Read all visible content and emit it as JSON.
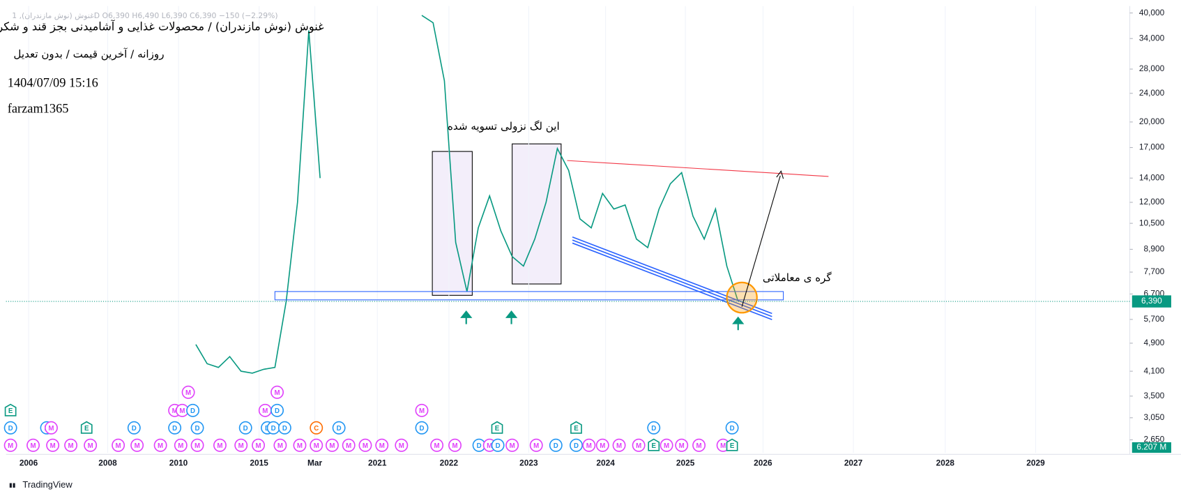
{
  "chart_data": {
    "type": "line",
    "legend_line": "غنوش (نوش مازندران), 1D  O6,390  H6,490  L6,390  C6,390  −150 (−2.29%)",
    "title": "غنوش (نوش مازندران) / محصولات غذایی و آشامیدنی بجز قند و شکر",
    "subtitle": "روزانه / آخرین قیمت / بدون تعدیل",
    "timestamp": "1404/07/09 15:16",
    "author": "farzam1365",
    "annotations": [
      "این لگ نزولی تسویه شده",
      "گره ی معاملاتی"
    ],
    "log_scale": true,
    "ylim": [
      2440,
      41800
    ],
    "yticks": [
      {
        "value": 40000,
        "label": "40,000"
      },
      {
        "value": 34000,
        "label": "34,000"
      },
      {
        "value": 28000,
        "label": "28,000"
      },
      {
        "value": 24000,
        "label": "24,000"
      },
      {
        "value": 20000,
        "label": "20,000"
      },
      {
        "value": 17000,
        "label": "17,000"
      },
      {
        "value": 14000,
        "label": "14,000"
      },
      {
        "value": 12000,
        "label": "12,000"
      },
      {
        "value": 10500,
        "label": "10,500"
      },
      {
        "value": 8900,
        "label": "8,900"
      },
      {
        "value": 7700,
        "label": "7,700"
      },
      {
        "value": 6700,
        "label": "6,700"
      },
      {
        "value": 5700,
        "label": "5,700"
      },
      {
        "value": 4900,
        "label": "4,900"
      },
      {
        "value": 4100,
        "label": "4,100"
      },
      {
        "value": 3500,
        "label": "3,500"
      },
      {
        "value": 3050,
        "label": "3,050"
      },
      {
        "value": 2650,
        "label": "2,650"
      }
    ],
    "xlabels": [
      "2006",
      "2008",
      "2010",
      "2015",
      "Mar",
      "2021",
      "2022",
      "2023",
      "2024",
      "2025",
      "2026",
      "2027",
      "2028",
      "2029"
    ],
    "series": [
      {
        "name": "غنوش",
        "color": "#089981",
        "values": [
          4860,
          4300,
          4200,
          4500,
          4100,
          4050,
          4150,
          4200,
          6400,
          12000,
          35800,
          14000,
          null,
          null,
          null,
          null,
          null,
          null,
          null,
          null,
          39400,
          37600,
          26000,
          9300,
          6800,
          10200,
          12500,
          10000,
          8500,
          8000,
          9500,
          12000,
          16900,
          14700,
          10800,
          10200,
          12700,
          11500,
          11800,
          9500,
          9000,
          11500,
          13500,
          14500,
          11000,
          9500,
          11500,
          8000,
          6390
        ]
      }
    ],
    "last_price": {
      "value": 6390,
      "label": "6,390"
    },
    "volume_label": "6.207 M",
    "events": [
      "M",
      "M",
      "M",
      "M",
      "M",
      "M",
      "M",
      "M",
      "M",
      "M",
      "M",
      "M",
      "M",
      "M",
      "M",
      "M",
      "M",
      "M",
      "M",
      "M",
      "M",
      "M",
      "M",
      "D",
      "M",
      "D",
      "M",
      "M",
      "D",
      "D",
      "M",
      "M",
      "M",
      "M",
      "E",
      "M",
      "M",
      "M",
      "M",
      "E",
      "D",
      "D",
      "M",
      "E",
      "D",
      "D",
      "D",
      "D",
      "D",
      "D",
      "D",
      "C",
      "D",
      "D",
      "E",
      "E",
      "D",
      "D",
      "E",
      "M",
      "M",
      "D",
      "M",
      "D",
      "M",
      "M",
      "M"
    ],
    "brand": "TradingView"
  }
}
